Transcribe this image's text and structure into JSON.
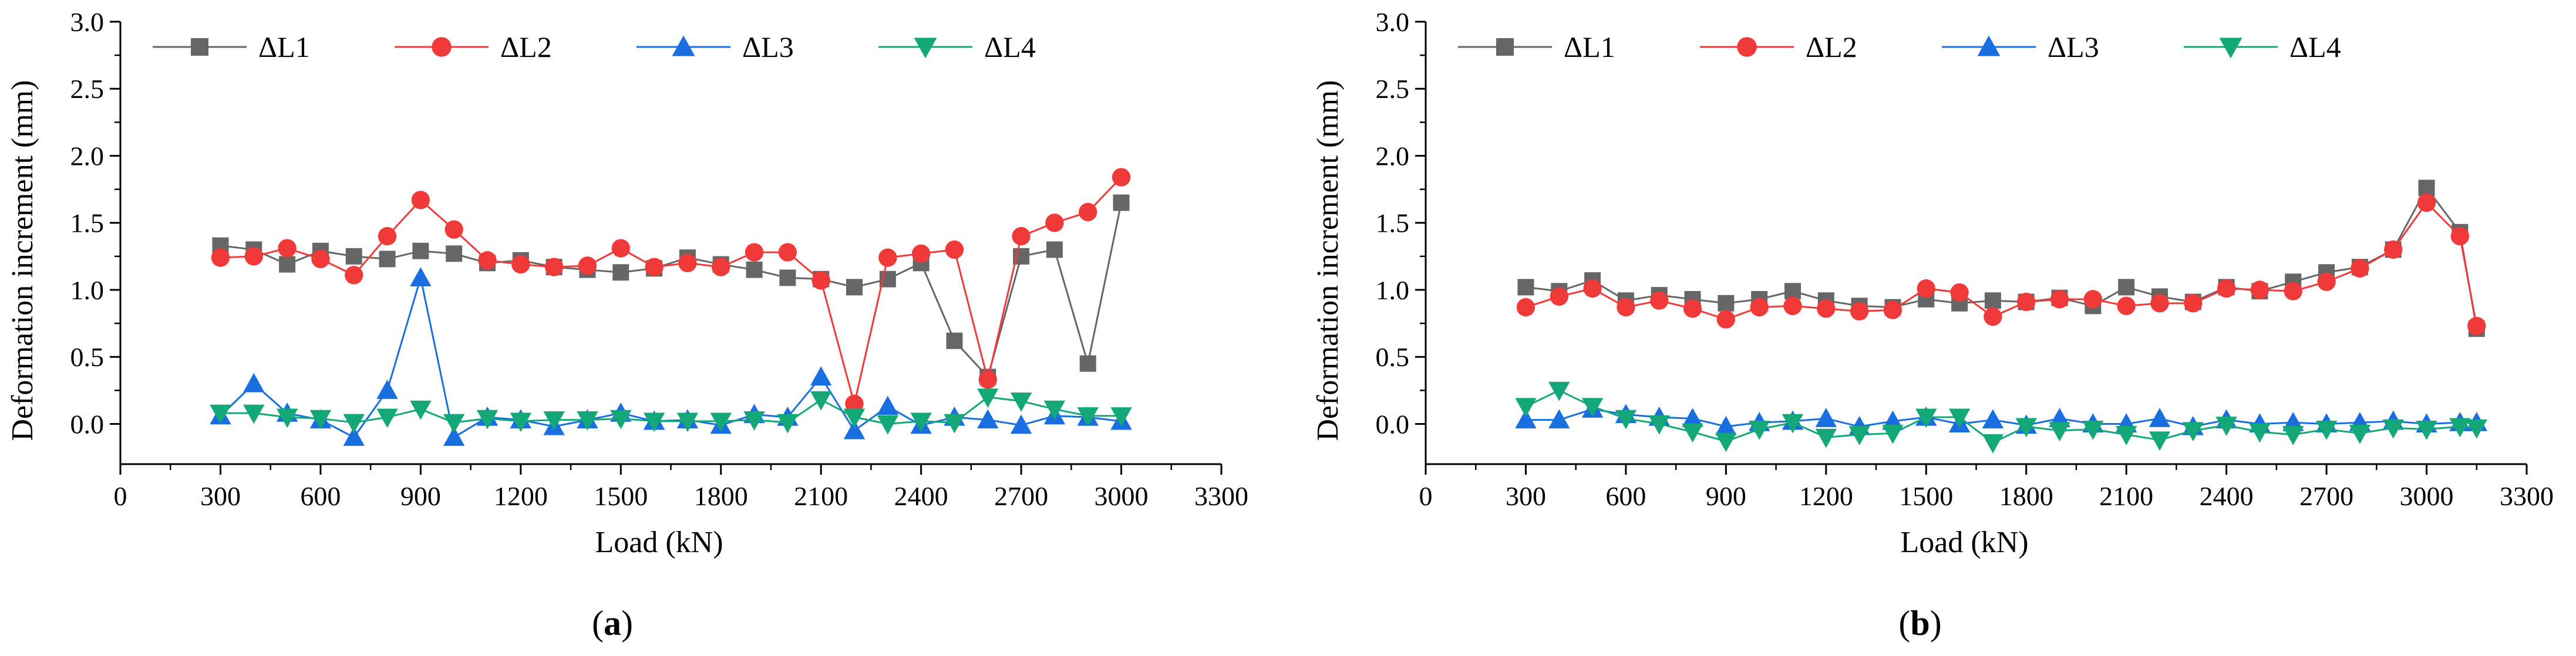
{
  "chart_data": [
    {
      "panel_label": "a",
      "type": "line",
      "xlabel": "Load (kN)",
      "ylabel": "Deformation increment (mm)",
      "xlim": [
        0,
        3300
      ],
      "ylim": [
        -0.3,
        3.0
      ],
      "xticks": [
        0,
        300,
        600,
        900,
        1200,
        1500,
        1800,
        2100,
        2400,
        2700,
        3000,
        3300
      ],
      "yticks": [
        "0.0",
        "0.5",
        "1.0",
        "1.5",
        "2.0",
        "2.5",
        "3.0"
      ],
      "legend_position": "top",
      "series": [
        {
          "name": "ΔL1",
          "color": "#666666",
          "marker": "square",
          "x": [
            300,
            400,
            500,
            600,
            700,
            800,
            900,
            1000,
            1100,
            1200,
            1300,
            1400,
            1500,
            1600,
            1700,
            1800,
            1900,
            2000,
            2100,
            2200,
            2300,
            2400,
            2500,
            2600,
            2700,
            2800,
            2900,
            3000
          ],
          "values": [
            1.33,
            1.3,
            1.19,
            1.29,
            1.25,
            1.23,
            1.29,
            1.27,
            1.2,
            1.22,
            1.17,
            1.15,
            1.13,
            1.16,
            1.24,
            1.19,
            1.15,
            1.09,
            1.08,
            1.02,
            1.08,
            1.2,
            0.62,
            0.35,
            1.25,
            1.3,
            0.45,
            1.65
          ]
        },
        {
          "name": "ΔL2",
          "color": "#f03a3a",
          "marker": "circle",
          "x": [
            300,
            400,
            500,
            600,
            700,
            800,
            900,
            1000,
            1100,
            1200,
            1300,
            1400,
            1500,
            1600,
            1700,
            1800,
            1900,
            2000,
            2100,
            2200,
            2300,
            2400,
            2500,
            2600,
            2700,
            2800,
            2900,
            3000
          ],
          "values": [
            1.24,
            1.25,
            1.31,
            1.23,
            1.11,
            1.4,
            1.67,
            1.45,
            1.22,
            1.19,
            1.17,
            1.18,
            1.31,
            1.17,
            1.2,
            1.17,
            1.28,
            1.28,
            1.07,
            0.15,
            1.24,
            1.27,
            1.3,
            0.33,
            1.4,
            1.5,
            1.58,
            1.84
          ]
        },
        {
          "name": "ΔL3",
          "color": "#1a6fe0",
          "marker": "triangle-up",
          "x": [
            300,
            400,
            500,
            600,
            700,
            800,
            900,
            1000,
            1100,
            1200,
            1300,
            1400,
            1500,
            1600,
            1700,
            1800,
            1900,
            2000,
            2100,
            2200,
            2300,
            2400,
            2500,
            2600,
            2700,
            2800,
            2900,
            3000
          ],
          "values": [
            0.06,
            0.3,
            0.08,
            0.03,
            -0.1,
            0.25,
            1.09,
            -0.1,
            0.05,
            0.03,
            -0.02,
            0.03,
            0.08,
            0.02,
            0.03,
            -0.01,
            0.07,
            0.05,
            0.35,
            -0.05,
            0.13,
            -0.01,
            0.05,
            0.03,
            -0.01,
            0.06,
            0.05,
            0.02
          ]
        },
        {
          "name": "ΔL4",
          "color": "#14a878",
          "marker": "triangle-down",
          "x": [
            300,
            400,
            500,
            600,
            700,
            800,
            900,
            1000,
            1100,
            1200,
            1300,
            1400,
            1500,
            1600,
            1700,
            1800,
            1900,
            2000,
            2100,
            2200,
            2300,
            2400,
            2500,
            2600,
            2700,
            2800,
            2900,
            3000
          ],
          "values": [
            0.08,
            0.08,
            0.05,
            0.04,
            0.01,
            0.05,
            0.11,
            0.01,
            0.04,
            0.02,
            0.03,
            0.03,
            0.04,
            0.02,
            0.02,
            0.02,
            0.03,
            0.01,
            0.18,
            0.05,
            0.0,
            0.02,
            0.01,
            0.2,
            0.17,
            0.11,
            0.06,
            0.06
          ]
        }
      ]
    },
    {
      "panel_label": "b",
      "type": "line",
      "xlabel": "Load (kN)",
      "ylabel": "Deformation increment (mm)",
      "xlim": [
        0,
        3300
      ],
      "ylim": [
        -0.3,
        3.0
      ],
      "xticks": [
        0,
        300,
        600,
        900,
        1200,
        1500,
        1800,
        2100,
        2400,
        2700,
        3000,
        3300
      ],
      "yticks": [
        "0.0",
        "0.5",
        "1.0",
        "1.5",
        "2.0",
        "2.5",
        "3.0"
      ],
      "legend_position": "top",
      "series": [
        {
          "name": "ΔL1",
          "color": "#666666",
          "marker": "square",
          "x": [
            300,
            400,
            500,
            600,
            700,
            800,
            900,
            1000,
            1100,
            1200,
            1300,
            1400,
            1500,
            1600,
            1700,
            1800,
            1900,
            2000,
            2100,
            2200,
            2300,
            2400,
            2500,
            2600,
            2700,
            2800,
            2900,
            3000,
            3100,
            3150
          ],
          "values": [
            1.02,
            0.99,
            1.07,
            0.92,
            0.96,
            0.93,
            0.9,
            0.93,
            0.99,
            0.92,
            0.88,
            0.87,
            0.93,
            0.9,
            0.92,
            0.91,
            0.94,
            0.88,
            1.02,
            0.95,
            0.91,
            1.02,
            0.99,
            1.06,
            1.13,
            1.17,
            1.3,
            1.76,
            1.43,
            0.71
          ]
        },
        {
          "name": "ΔL2",
          "color": "#f03a3a",
          "marker": "circle",
          "x": [
            300,
            400,
            500,
            600,
            700,
            800,
            900,
            1000,
            1100,
            1200,
            1300,
            1400,
            1500,
            1600,
            1700,
            1800,
            1900,
            2000,
            2100,
            2200,
            2300,
            2400,
            2500,
            2600,
            2700,
            2800,
            2900,
            3000,
            3100,
            3150
          ],
          "values": [
            0.87,
            0.95,
            1.01,
            0.87,
            0.92,
            0.86,
            0.78,
            0.87,
            0.88,
            0.86,
            0.84,
            0.85,
            1.01,
            0.98,
            0.8,
            0.91,
            0.93,
            0.93,
            0.88,
            0.9,
            0.9,
            1.01,
            1.0,
            0.99,
            1.06,
            1.16,
            1.3,
            1.65,
            1.4,
            0.73
          ]
        },
        {
          "name": "ΔL3",
          "color": "#1a6fe0",
          "marker": "triangle-up",
          "x": [
            300,
            400,
            500,
            600,
            700,
            800,
            900,
            1000,
            1100,
            1200,
            1300,
            1400,
            1500,
            1600,
            1700,
            1800,
            1900,
            2000,
            2100,
            2200,
            2300,
            2400,
            2500,
            2600,
            2700,
            2800,
            2900,
            3000,
            3100,
            3150
          ],
          "values": [
            0.03,
            0.03,
            0.11,
            0.07,
            0.05,
            0.04,
            -0.02,
            0.01,
            0.02,
            0.04,
            -0.02,
            0.02,
            0.05,
            0.0,
            0.03,
            -0.01,
            0.04,
            0.0,
            0.0,
            0.04,
            -0.02,
            0.03,
            0.0,
            0.01,
            0.0,
            0.01,
            0.02,
            0.0,
            0.01,
            0.01
          ]
        },
        {
          "name": "ΔL4",
          "color": "#14a878",
          "marker": "triangle-down",
          "x": [
            300,
            400,
            500,
            600,
            700,
            800,
            900,
            1000,
            1100,
            1200,
            1300,
            1400,
            1500,
            1600,
            1700,
            1800,
            1900,
            2000,
            2100,
            2200,
            2300,
            2400,
            2500,
            2600,
            2700,
            2800,
            2900,
            3000,
            3100,
            3150
          ],
          "values": [
            0.13,
            0.25,
            0.13,
            0.04,
            0.0,
            -0.06,
            -0.13,
            -0.04,
            0.01,
            -0.1,
            -0.08,
            -0.07,
            0.05,
            0.05,
            -0.14,
            -0.02,
            -0.05,
            -0.04,
            -0.08,
            -0.12,
            -0.05,
            -0.01,
            -0.06,
            -0.08,
            -0.04,
            -0.07,
            -0.03,
            -0.04,
            -0.02,
            -0.03
          ]
        }
      ]
    }
  ]
}
